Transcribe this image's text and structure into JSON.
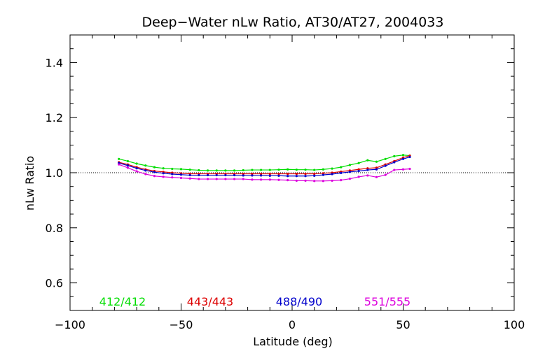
{
  "chart_data": {
    "type": "line",
    "title": "Deep−Water nLw Ratio, AT30/AT27, 2004033",
    "xlabel": "Latitude (deg)",
    "ylabel": "nLw Ratio",
    "xlim": [
      -100,
      100
    ],
    "ylim": [
      0.5,
      1.5
    ],
    "x_ticks": [
      -100,
      -50,
      0,
      50,
      100
    ],
    "x_tick_labels": [
      "−100",
      "−50",
      "0",
      "50",
      "100"
    ],
    "y_ticks": [
      0.6,
      0.8,
      1.0,
      1.2,
      1.4
    ],
    "y_tick_labels": [
      "0.6",
      "0.8",
      "1.0",
      "1.2",
      "1.4"
    ],
    "reference_line": 1.0,
    "x": [
      -78,
      -74,
      -70,
      -66,
      -62,
      -58,
      -54,
      -50,
      -46,
      -42,
      -38,
      -34,
      -30,
      -26,
      -22,
      -18,
      -14,
      -10,
      -6,
      -2,
      2,
      6,
      10,
      14,
      18,
      22,
      26,
      30,
      34,
      38,
      42,
      46,
      50,
      53
    ],
    "series": [
      {
        "name": "412/412",
        "color": "#00dd00",
        "values": [
          1.05,
          1.042,
          1.033,
          1.026,
          1.02,
          1.016,
          1.014,
          1.013,
          1.011,
          1.009,
          1.008,
          1.008,
          1.008,
          1.008,
          1.009,
          1.01,
          1.01,
          1.01,
          1.011,
          1.012,
          1.011,
          1.011,
          1.01,
          1.012,
          1.015,
          1.02,
          1.028,
          1.035,
          1.045,
          1.04,
          1.05,
          1.06,
          1.064,
          1.062
        ]
      },
      {
        "name": "443/443",
        "color": "#dd0000",
        "values": [
          1.038,
          1.03,
          1.02,
          1.012,
          1.006,
          1.003,
          1.0,
          0.998,
          0.996,
          0.996,
          0.996,
          0.996,
          0.996,
          0.996,
          0.996,
          0.996,
          0.996,
          0.996,
          0.996,
          0.996,
          0.996,
          0.996,
          0.996,
          0.998,
          1.0,
          1.004,
          1.008,
          1.012,
          1.016,
          1.018,
          1.03,
          1.042,
          1.055,
          1.062
        ]
      },
      {
        "name": "488/490",
        "color": "#0000cc",
        "values": [
          1.035,
          1.026,
          1.016,
          1.008,
          1.002,
          0.998,
          0.995,
          0.993,
          0.991,
          0.991,
          0.991,
          0.991,
          0.991,
          0.991,
          0.99,
          0.99,
          0.99,
          0.989,
          0.989,
          0.988,
          0.988,
          0.988,
          0.989,
          0.992,
          0.995,
          0.999,
          1.003,
          1.006,
          1.01,
          1.012,
          1.025,
          1.038,
          1.05,
          1.057
        ]
      },
      {
        "name": "551/555",
        "color": "#dd00dd",
        "values": [
          1.03,
          1.018,
          1.005,
          0.995,
          0.988,
          0.985,
          0.983,
          0.981,
          0.979,
          0.977,
          0.977,
          0.977,
          0.977,
          0.977,
          0.977,
          0.975,
          0.975,
          0.975,
          0.974,
          0.973,
          0.971,
          0.971,
          0.97,
          0.97,
          0.971,
          0.973,
          0.978,
          0.985,
          0.99,
          0.984,
          0.992,
          1.01,
          1.012,
          1.014
        ]
      }
    ],
    "legend_placement": "bottom-inside",
    "grid": false
  }
}
